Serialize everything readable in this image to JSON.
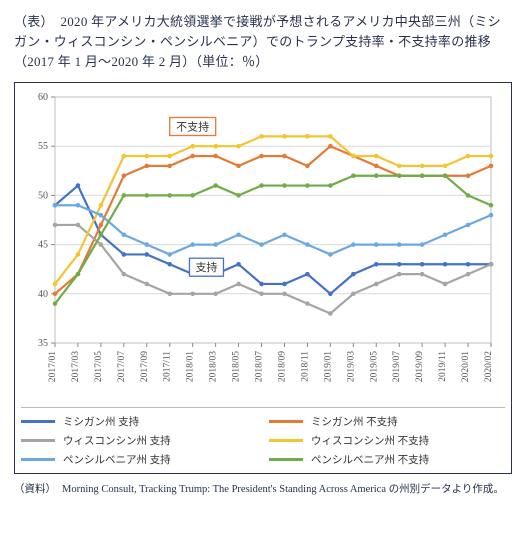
{
  "title": "（表）　2020 年アメリカ大統領選挙で接戦が予想されるアメリカ中央部三州（ミシガン・ウィスコンシン・ペンシルベニア）でのトランプ支持率・不支持率の推移（2017 年 1 月～2020 年 2 月）（単位：％）",
  "source_label": "（資料）",
  "source_body": "Morning Consult, Tracking Trump: The President's Standing Across America の州別データより作成。",
  "chart": {
    "type": "line",
    "background_color": "#ffffff",
    "plot_border_color": "#bfbfbf",
    "grid_color": "#d9d9d9",
    "ylim": [
      35,
      60
    ],
    "ytick_step": 5,
    "tick_label_fontsize": 10,
    "x_tick_label_fontsize": 9.5,
    "line_width": 2.2,
    "marker_size": 2.3,
    "categories": [
      "2017/01",
      "2017/03",
      "2017/05",
      "2017/07",
      "2017/09",
      "2017/11",
      "2018/01",
      "2018/03",
      "2018/05",
      "2018/07",
      "2018/09",
      "2018/11",
      "2019/01",
      "2019/03",
      "2019/05",
      "2019/07",
      "2019/09",
      "2019/11",
      "2020/01",
      "2020/02"
    ],
    "series": [
      {
        "key": "mi_approve",
        "label": "ミシガン州 支持",
        "color": "#4373c6",
        "values": [
          49,
          51,
          46,
          44,
          44,
          43,
          42,
          42,
          43,
          41,
          41,
          42,
          40,
          42,
          43,
          43,
          43,
          43,
          43,
          43
        ]
      },
      {
        "key": "mi_disapprove",
        "label": "ミシガン州 不支持",
        "color": "#e47a34",
        "values": [
          40,
          42,
          47,
          52,
          53,
          53,
          54,
          54,
          53,
          54,
          54,
          53,
          55,
          54,
          53,
          52,
          52,
          52,
          52,
          53
        ]
      },
      {
        "key": "wi_approve",
        "label": "ウィスコンシン州 支持",
        "color": "#a5a5a5",
        "values": [
          47,
          47,
          45,
          42,
          41,
          40,
          40,
          40,
          41,
          40,
          40,
          39,
          38,
          40,
          41,
          42,
          42,
          41,
          42,
          43
        ]
      },
      {
        "key": "wi_disapprove",
        "label": "ウィスコンシン州 不支持",
        "color": "#f4c431",
        "values": [
          41,
          44,
          49,
          54,
          54,
          54,
          55,
          55,
          55,
          56,
          56,
          56,
          56,
          54,
          54,
          53,
          53,
          53,
          54,
          54
        ]
      },
      {
        "key": "pa_approve",
        "label": "ペンシルベニア州 支持",
        "color": "#6aa9e3",
        "values": [
          49,
          49,
          48,
          46,
          45,
          44,
          45,
          45,
          46,
          45,
          46,
          45,
          44,
          45,
          45,
          45,
          45,
          46,
          47,
          48
        ]
      },
      {
        "key": "pa_disapprove",
        "label": "ペンシルベニア州 不支持",
        "color": "#70ac47",
        "values": [
          39,
          42,
          46,
          50,
          50,
          50,
          50,
          51,
          50,
          51,
          51,
          51,
          51,
          52,
          52,
          52,
          52,
          52,
          50,
          49
        ]
      }
    ],
    "annotations": [
      {
        "key": "disapprove",
        "label": "不支持",
        "x_idx": 6,
        "y": 57,
        "box_border": "#e47a34"
      },
      {
        "key": "approve",
        "label": "支持",
        "x_idx": 6.6,
        "y": 42.7,
        "box_border": "#4373c6"
      }
    ]
  }
}
